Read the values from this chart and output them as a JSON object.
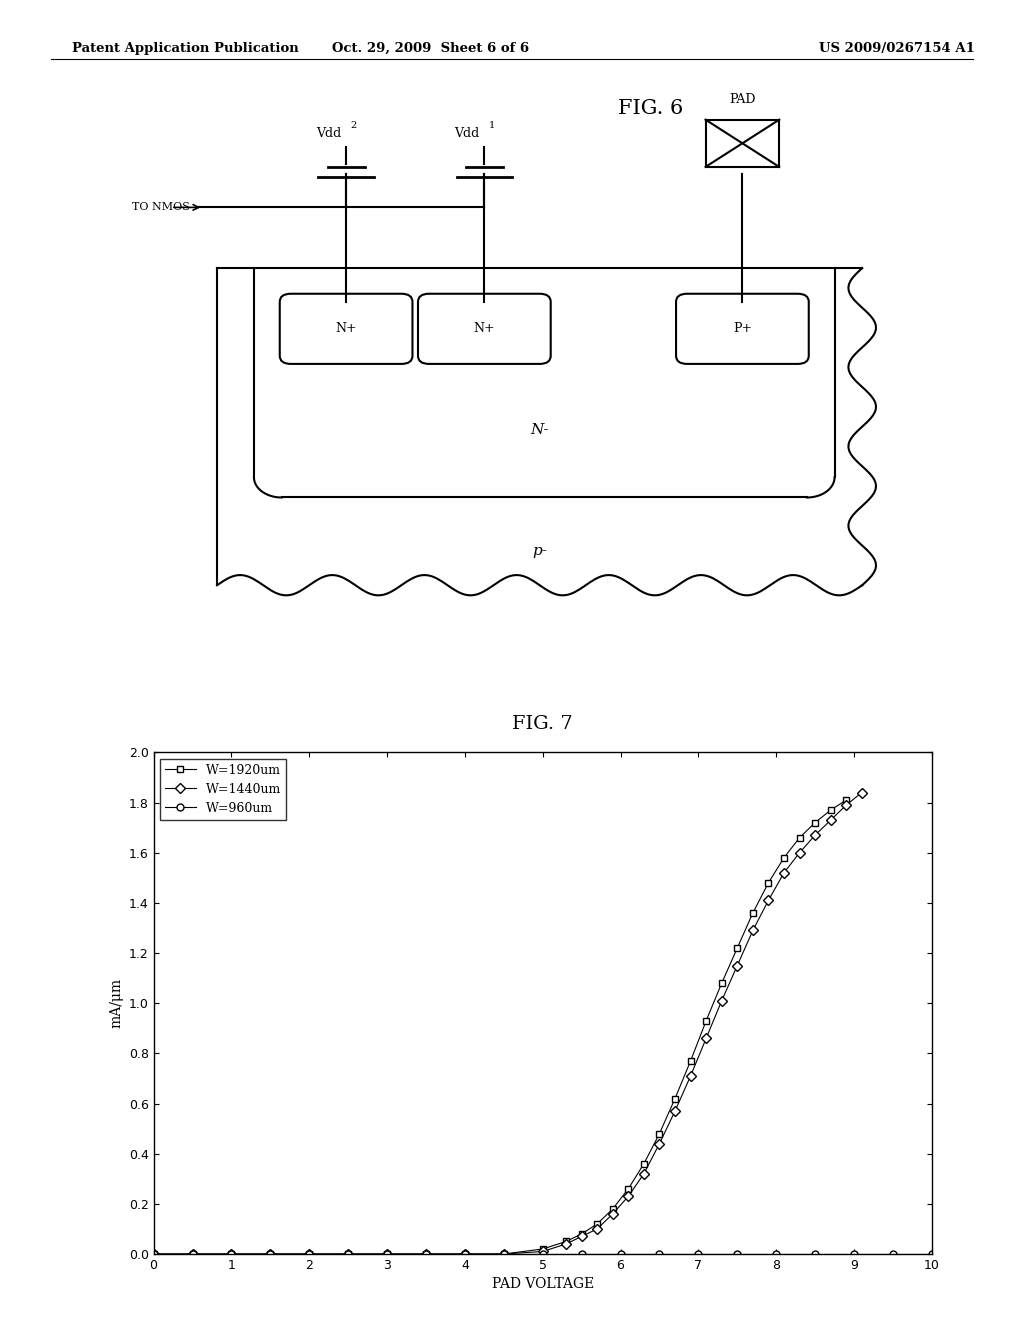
{
  "background_color": "#ffffff",
  "header_left": "Patent Application Publication",
  "header_center": "Oct. 29, 2009  Sheet 6 of 6",
  "header_right": "US 2009/0267154 A1",
  "fig6_title": "FIG. 6",
  "fig7_title": "FIG. 7",
  "fig7_xlabel": "PAD VOLTAGE",
  "fig7_ylabel": "mA/μm",
  "fig7_xlim": [
    0,
    10
  ],
  "fig7_ylim": [
    0.0,
    2.0
  ],
  "fig7_xticks": [
    0,
    1,
    2,
    3,
    4,
    5,
    6,
    7,
    8,
    9,
    10
  ],
  "fig7_yticks": [
    0.0,
    0.2,
    0.4,
    0.6,
    0.8,
    1.0,
    1.2,
    1.4,
    1.6,
    1.8,
    2.0
  ],
  "series": [
    {
      "label": "W=1920um",
      "marker": "s",
      "x": [
        0,
        0.5,
        1.0,
        1.5,
        2.0,
        2.5,
        3.0,
        3.5,
        4.0,
        4.5,
        5.0,
        5.3,
        5.5,
        5.7,
        5.9,
        6.1,
        6.3,
        6.5,
        6.7,
        6.9,
        7.1,
        7.3,
        7.5,
        7.7,
        7.9,
        8.1,
        8.3,
        8.5,
        8.7,
        8.9
      ],
      "y": [
        0,
        0,
        0,
        0,
        0,
        0,
        0,
        0,
        0,
        0,
        0.02,
        0.05,
        0.08,
        0.12,
        0.18,
        0.26,
        0.36,
        0.48,
        0.62,
        0.77,
        0.93,
        1.08,
        1.22,
        1.36,
        1.48,
        1.58,
        1.66,
        1.72,
        1.77,
        1.81
      ]
    },
    {
      "label": "W=1440um",
      "marker": "D",
      "x": [
        0,
        0.5,
        1.0,
        1.5,
        2.0,
        2.5,
        3.0,
        3.5,
        4.0,
        4.5,
        5.0,
        5.3,
        5.5,
        5.7,
        5.9,
        6.1,
        6.3,
        6.5,
        6.7,
        6.9,
        7.1,
        7.3,
        7.5,
        7.7,
        7.9,
        8.1,
        8.3,
        8.5,
        8.7,
        8.9,
        9.1
      ],
      "y": [
        0,
        0,
        0,
        0,
        0,
        0,
        0,
        0,
        0,
        0,
        0.01,
        0.04,
        0.07,
        0.1,
        0.16,
        0.23,
        0.32,
        0.44,
        0.57,
        0.71,
        0.86,
        1.01,
        1.15,
        1.29,
        1.41,
        1.52,
        1.6,
        1.67,
        1.73,
        1.79,
        1.84
      ]
    },
    {
      "label": "W=960um",
      "marker": "o",
      "x": [
        0,
        0.5,
        1.0,
        1.5,
        2.0,
        2.5,
        3.0,
        3.5,
        4.0,
        4.5,
        5.0,
        5.5,
        6.0,
        6.5,
        7.0,
        7.5,
        8.0,
        8.5,
        9.0,
        9.5,
        10.0
      ],
      "y": [
        0,
        0,
        0,
        0,
        0,
        0,
        0,
        0,
        0,
        0,
        0,
        0,
        0,
        0,
        0,
        0,
        0,
        0,
        0,
        0,
        0
      ]
    }
  ]
}
